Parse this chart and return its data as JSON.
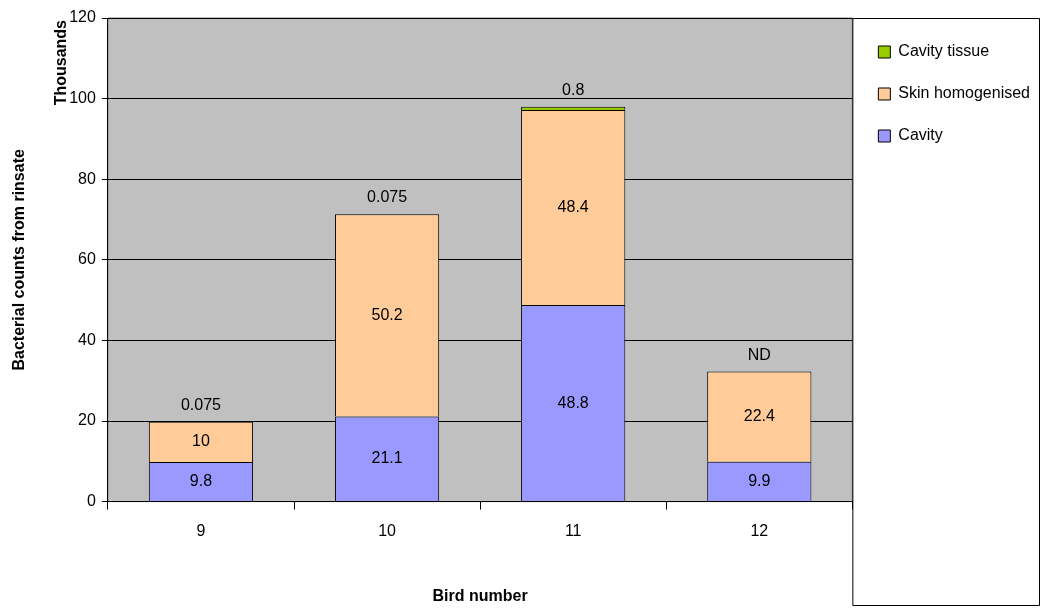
{
  "chart_data": {
    "type": "bar",
    "stacked": true,
    "categories": [
      "9",
      "10",
      "11",
      "12"
    ],
    "series": [
      {
        "name": "Cavity",
        "color": "#9999ff",
        "values": [
          9.8,
          21.1,
          48.8,
          9.9
        ],
        "value_labels": [
          "9.8",
          "21.1",
          "48.8",
          "9.9"
        ]
      },
      {
        "name": "Skin homogenised",
        "color": "#ffcc99",
        "values": [
          10,
          50.2,
          48.4,
          22.4
        ],
        "value_labels": [
          "10",
          "50.2",
          "48.4",
          "22.4"
        ]
      },
      {
        "name": "Cavity tissue",
        "color": "#99cc00",
        "values": [
          0.075,
          0.075,
          0.8,
          null
        ],
        "value_labels": [
          "0.075",
          "0.075",
          "0.8",
          "ND"
        ]
      }
    ],
    "xlabel": "Bird number",
    "ylabel": "Bacterial counts from rinsate",
    "annotations": [
      "Thousands"
    ],
    "ylim": [
      0,
      120
    ],
    "yticks": [
      0,
      20,
      40,
      60,
      80,
      100,
      120
    ],
    "grid": "y",
    "legend": "top right"
  }
}
